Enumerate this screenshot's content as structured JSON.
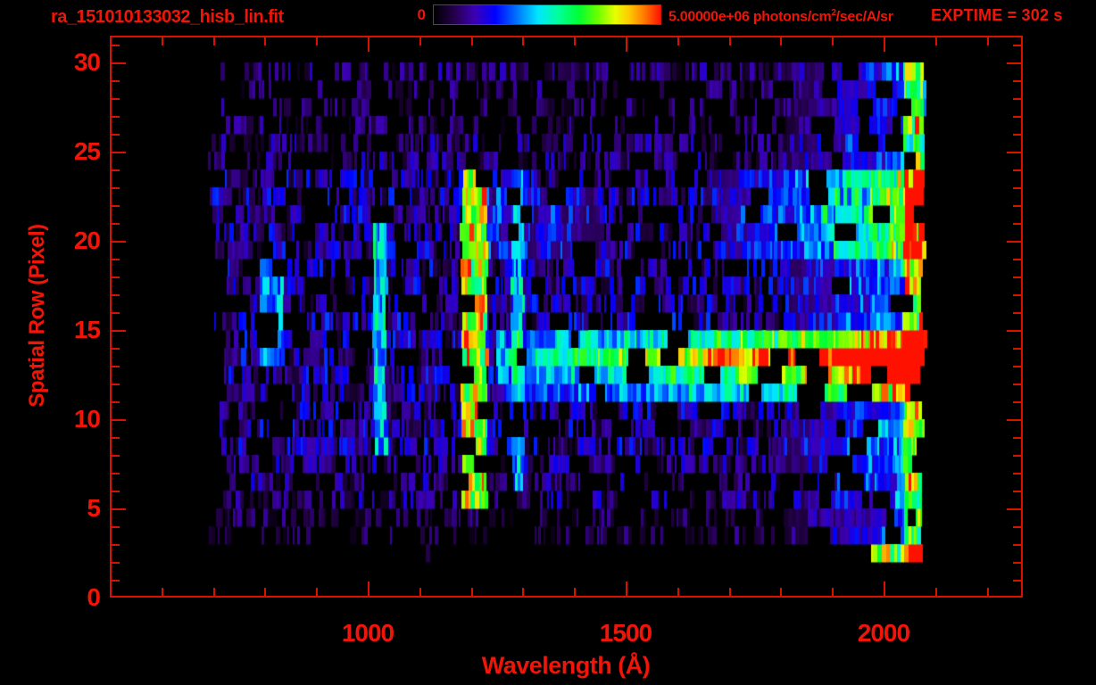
{
  "header": {
    "filename": "ra_151010133032_hisb_lin.fit",
    "colorbar_min": "0",
    "colorbar_max_prefix": "5.00000e+06 photons/cm",
    "colorbar_max_sup": "2",
    "colorbar_max_suffix": "/sec/A/sr",
    "exptime": "EXPTIME = 302 s"
  },
  "chart_data": {
    "type": "heatmap",
    "title": "ra_151010133032_hisb_lin.fit",
    "xlabel": "Wavelength (Å)",
    "ylabel": "Spatial Row (Pixel)",
    "xlim": [
      500,
      2270
    ],
    "ylim": [
      0,
      31.5
    ],
    "x_ticks": [
      1000,
      1500,
      2000
    ],
    "x_minor_step": 100,
    "y_ticks": [
      0,
      5,
      10,
      15,
      20,
      25,
      30
    ],
    "y_minor_step": 1,
    "colorbar": {
      "min": 0,
      "max": 5000000,
      "max_label": "5.00000e+06",
      "units": "photons/cm^2/sec/A/sr"
    },
    "exposure_time_s": 302,
    "data_extent": {
      "wavelength": [
        690,
        2078
      ],
      "rows": [
        2,
        30
      ]
    },
    "render": {
      "seed": 151010,
      "row_min": 2,
      "row_max": 29,
      "strip_width": [
        2,
        5
      ],
      "row_profile": [
        {
          "rows": [
            2,
            2
          ],
          "base": 0.05,
          "gap": 0.94
        },
        {
          "rows": [
            3,
            4
          ],
          "base": 0.09,
          "gap": 0.56
        },
        {
          "rows": [
            5,
            7
          ],
          "base": 0.13,
          "gap": 0.36
        },
        {
          "rows": [
            8,
            11
          ],
          "base": 0.16,
          "gap": 0.28
        },
        {
          "rows": [
            12,
            15
          ],
          "base": 0.17,
          "gap": 0.25
        },
        {
          "rows": [
            16,
            19
          ],
          "base": 0.16,
          "gap": 0.3
        },
        {
          "rows": [
            20,
            23
          ],
          "base": 0.16,
          "gap": 0.28
        },
        {
          "rows": [
            24,
            25
          ],
          "base": 0.12,
          "gap": 0.44
        },
        {
          "rows": [
            26,
            28
          ],
          "base": 0.1,
          "gap": 0.52
        },
        {
          "rows": [
            29,
            29
          ],
          "base": 0.11,
          "gap": 0.34
        }
      ],
      "vertical_lines": [
        {
          "name": "lyman-alpha-emission-line",
          "lambda": [
            1182,
            1232
          ],
          "rows": [
            5,
            24
          ],
          "intensity": 0.6
        },
        {
          "name": "secondary-emission-line",
          "lambda": [
            1279,
            1303
          ],
          "rows": [
            6,
            24
          ],
          "intensity": 0.24
        },
        {
          "name": "lyman-beta-emission-line",
          "lambda": [
            1012,
            1036
          ],
          "rows": [
            8,
            21
          ],
          "intensity": 0.27
        },
        {
          "name": "faint-emission-patch",
          "lambda": [
            793,
            838
          ],
          "rows": [
            13.5,
            18.5
          ],
          "intensity": 0.2
        }
      ],
      "continuum_bands": [
        {
          "row": 13,
          "from_lambda": 1250,
          "start": 0.25,
          "end": 1.1
        },
        {
          "row": 12,
          "from_lambda": 1250,
          "start": 0.15,
          "end": 0.72
        },
        {
          "row": 14,
          "from_lambda": 1250,
          "start": 0.15,
          "end": 0.6
        },
        {
          "row": 11,
          "from_lambda": 1250,
          "start": 0.08,
          "end": 0.5
        }
      ],
      "right_brightening": {
        "from_lambda": 1810,
        "amount": 0.3
      },
      "edge_column": {
        "lambda": [
          2040,
          2078
        ],
        "amount": 0.35
      },
      "upper_band": {
        "rows": [
          19.5,
          24
        ],
        "from_lambda": 1650,
        "amount": 0.38
      },
      "line_streaks": {
        "rows": [
          19,
          23
        ],
        "lambda": [
          1232,
          1450
        ],
        "amount": 0.15
      },
      "bottom_row_segment": {
        "row": 2,
        "from_lambda": 1975,
        "amount": 0.45
      }
    }
  },
  "colors": {
    "background": "#000000",
    "label_red": "#ef1508",
    "axis_red": "#d81200",
    "colormap_stops": [
      [
        0.0,
        "#000000"
      ],
      [
        0.09,
        "#24004a"
      ],
      [
        0.18,
        "#3c00b4"
      ],
      [
        0.27,
        "#0000ff"
      ],
      [
        0.37,
        "#0077ff"
      ],
      [
        0.46,
        "#00e6ff"
      ],
      [
        0.55,
        "#00ff99"
      ],
      [
        0.64,
        "#00ff33"
      ],
      [
        0.72,
        "#66ff00"
      ],
      [
        0.8,
        "#e6ff00"
      ],
      [
        0.86,
        "#ffcc00"
      ],
      [
        0.93,
        "#ff7700"
      ],
      [
        1.0,
        "#ff1100"
      ]
    ]
  }
}
